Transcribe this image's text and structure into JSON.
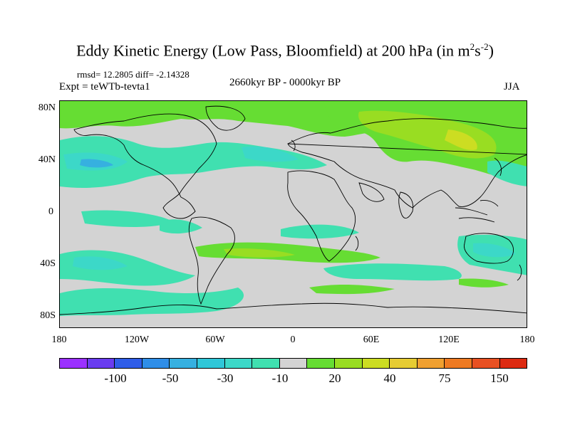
{
  "title": {
    "main": "Eddy Kinetic Energy (Low Pass, Bloomfield) at 200 hPa (in m",
    "sup1": "2",
    "mid": "s",
    "sup2": "-2",
    "end": ")"
  },
  "stats": {
    "rmsd": "rmsd= 12.2805 diff= -2.14328",
    "expt": "Expt = teWTb-tevta1",
    "period": "2660kyr BP - 0000kyr BP",
    "season": "JJA"
  },
  "axes": {
    "lat_labels": [
      "80N",
      "40N",
      "0",
      "40S",
      "80S"
    ],
    "lon_labels": [
      "180",
      "120W",
      "60W",
      "0",
      "60E",
      "120E",
      "180"
    ]
  },
  "colorbar": {
    "colors": [
      "#9b30ff",
      "#6a3cf0",
      "#2f5de8",
      "#2f8ee8",
      "#36b0e0",
      "#2fc7d8",
      "#3cd8c8",
      "#40e0b0",
      "#d3d3d3",
      "#66dd33",
      "#99dd22",
      "#ccdd22",
      "#e6cc33",
      "#f0a030",
      "#ee7a22",
      "#e85022",
      "#dd2a11"
    ],
    "labels": [
      "-100",
      "-50",
      "-30",
      "-10",
      "20",
      "40",
      "75",
      "150"
    ]
  },
  "colors": {
    "land_gray": "#d3d3d3",
    "green": "#66dd33",
    "light_green": "#99dd22",
    "yellow_green": "#ccdd22",
    "teal": "#40e0b0",
    "cyan": "#3cd8c8",
    "light_blue": "#2fc7d8",
    "blue": "#36b0e0"
  }
}
